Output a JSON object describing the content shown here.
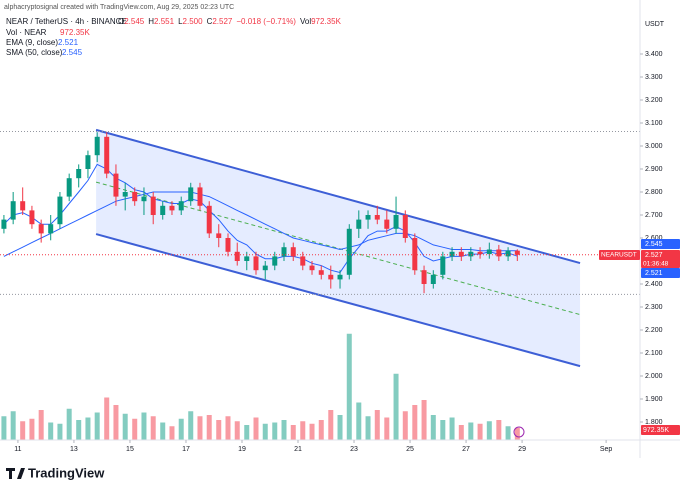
{
  "chart_data": {
    "type": "candlestick",
    "watermark": "alphacryptosignal created with TradingView.com, Aug 29, 2025 02:23 UTC",
    "symbol": "NEAR / TetherUS · 4h · BINANCE",
    "ohlc_legend": {
      "o_label": "O",
      "o": "2.545",
      "h_label": "H",
      "h": "2.551",
      "l_label": "L",
      "l": "2.500",
      "c_label": "C",
      "c": "2.527",
      "change": "−0.018 (−0.71%)",
      "vol_label": "Vol"
    },
    "vol_name": "Vol · NEAR",
    "volume_label": "972.35K",
    "ema_name": "EMA (9, close)",
    "sma_name": "SMA (50, close)",
    "currency": "USDT",
    "ticker_badge": "NEARUSDT",
    "countdown": "01:36:48",
    "brand": "TradingView",
    "up_color": "#089981",
    "down_color": "#f23645",
    "ema_color": "#2962ff",
    "sma_color": "#2962ff",
    "channel_color": "#3d5fd6",
    "xlim": [
      10.36,
      33.21
    ],
    "ylim": [
      1.72,
      3.6
    ],
    "xticks": [
      11,
      13,
      15,
      17,
      19,
      21,
      23,
      25,
      27,
      29,
      {
        "value": 32,
        "label": "Sep"
      }
    ],
    "yticks": [
      {
        "value": 1.8,
        "label": "1.800"
      },
      {
        "value": 1.9,
        "label": "1.900"
      },
      {
        "value": 2.0,
        "label": "2.000"
      },
      {
        "value": 2.1,
        "label": "2.100"
      },
      {
        "value": 2.2,
        "label": "2.200"
      },
      {
        "value": 2.3,
        "label": "2.300"
      },
      {
        "value": 2.4,
        "label": "2.400"
      },
      {
        "value": 2.6,
        "label": "2.600"
      },
      {
        "value": 2.7,
        "label": "2.700"
      },
      {
        "value": 2.8,
        "label": "2.800"
      },
      {
        "value": 2.9,
        "label": "2.900"
      },
      {
        "value": 3.0,
        "label": "3.000"
      },
      {
        "value": 3.1,
        "label": "3.100"
      },
      {
        "value": 3.2,
        "label": "3.200"
      },
      {
        "value": 3.3,
        "label": "3.300"
      },
      {
        "value": 3.4,
        "label": "3.400"
      }
    ],
    "channel": {
      "x": [
        13.79,
        31.07
      ],
      "upper": [
        3.07,
        2.491
      ],
      "lower": [
        2.617,
        2.043
      ],
      "middle": [
        2.843,
        2.267
      ]
    },
    "levels": [
      3.063,
      2.355
    ],
    "candles": [
      {
        "t": 10.5,
        "o": 2.64,
        "h": 2.7,
        "l": 2.62,
        "c": 2.68,
        "v": 1900
      },
      {
        "t": 10.83,
        "o": 2.68,
        "h": 2.8,
        "l": 2.66,
        "c": 2.76,
        "v": 2300
      },
      {
        "t": 11.17,
        "o": 2.76,
        "h": 2.82,
        "l": 2.7,
        "c": 2.72,
        "v": 1500
      },
      {
        "t": 11.5,
        "o": 2.72,
        "h": 2.74,
        "l": 2.64,
        "c": 2.66,
        "v": 1700
      },
      {
        "t": 11.83,
        "o": 2.66,
        "h": 2.68,
        "l": 2.58,
        "c": 2.62,
        "v": 2400
      },
      {
        "t": 12.17,
        "o": 2.62,
        "h": 2.7,
        "l": 2.59,
        "c": 2.66,
        "v": 1400
      },
      {
        "t": 12.5,
        "o": 2.66,
        "h": 2.8,
        "l": 2.64,
        "c": 2.78,
        "v": 1300
      },
      {
        "t": 12.83,
        "o": 2.78,
        "h": 2.88,
        "l": 2.76,
        "c": 2.86,
        "v": 2500
      },
      {
        "t": 13.17,
        "o": 2.86,
        "h": 2.92,
        "l": 2.82,
        "c": 2.9,
        "v": 1600
      },
      {
        "t": 13.5,
        "o": 2.9,
        "h": 2.98,
        "l": 2.86,
        "c": 2.96,
        "v": 1800
      },
      {
        "t": 13.83,
        "o": 2.96,
        "h": 3.06,
        "l": 2.93,
        "c": 3.04,
        "v": 2200
      },
      {
        "t": 14.17,
        "o": 3.04,
        "h": 3.06,
        "l": 2.86,
        "c": 2.88,
        "v": 3400
      },
      {
        "t": 14.5,
        "o": 2.88,
        "h": 2.92,
        "l": 2.74,
        "c": 2.78,
        "v": 2800
      },
      {
        "t": 14.83,
        "o": 2.78,
        "h": 2.84,
        "l": 2.72,
        "c": 2.8,
        "v": 2100
      },
      {
        "t": 15.17,
        "o": 2.8,
        "h": 2.82,
        "l": 2.74,
        "c": 2.76,
        "v": 1700
      },
      {
        "t": 15.5,
        "o": 2.76,
        "h": 2.82,
        "l": 2.7,
        "c": 2.78,
        "v": 2200
      },
      {
        "t": 15.83,
        "o": 2.78,
        "h": 2.8,
        "l": 2.66,
        "c": 2.7,
        "v": 1900
      },
      {
        "t": 16.17,
        "o": 2.7,
        "h": 2.76,
        "l": 2.68,
        "c": 2.74,
        "v": 1400
      },
      {
        "t": 16.5,
        "o": 2.74,
        "h": 2.76,
        "l": 2.7,
        "c": 2.72,
        "v": 1100
      },
      {
        "t": 16.83,
        "o": 2.72,
        "h": 2.78,
        "l": 2.7,
        "c": 2.76,
        "v": 1700
      },
      {
        "t": 17.17,
        "o": 2.76,
        "h": 2.84,
        "l": 2.74,
        "c": 2.82,
        "v": 2300
      },
      {
        "t": 17.5,
        "o": 2.82,
        "h": 2.84,
        "l": 2.72,
        "c": 2.74,
        "v": 1900
      },
      {
        "t": 17.83,
        "o": 2.74,
        "h": 2.76,
        "l": 2.6,
        "c": 2.62,
        "v": 2000
      },
      {
        "t": 18.17,
        "o": 2.62,
        "h": 2.66,
        "l": 2.56,
        "c": 2.6,
        "v": 1600
      },
      {
        "t": 18.5,
        "o": 2.6,
        "h": 2.62,
        "l": 2.52,
        "c": 2.54,
        "v": 1900
      },
      {
        "t": 18.83,
        "o": 2.54,
        "h": 2.58,
        "l": 2.48,
        "c": 2.5,
        "v": 1500
      },
      {
        "t": 19.17,
        "o": 2.5,
        "h": 2.54,
        "l": 2.46,
        "c": 2.52,
        "v": 1200
      },
      {
        "t": 19.5,
        "o": 2.52,
        "h": 2.54,
        "l": 2.44,
        "c": 2.46,
        "v": 1800
      },
      {
        "t": 19.83,
        "o": 2.46,
        "h": 2.5,
        "l": 2.42,
        "c": 2.48,
        "v": 1300
      },
      {
        "t": 20.17,
        "o": 2.48,
        "h": 2.54,
        "l": 2.46,
        "c": 2.52,
        "v": 1400
      },
      {
        "t": 20.5,
        "o": 2.52,
        "h": 2.58,
        "l": 2.5,
        "c": 2.56,
        "v": 1600
      },
      {
        "t": 20.83,
        "o": 2.56,
        "h": 2.58,
        "l": 2.5,
        "c": 2.52,
        "v": 1200
      },
      {
        "t": 21.17,
        "o": 2.52,
        "h": 2.54,
        "l": 2.46,
        "c": 2.48,
        "v": 1500
      },
      {
        "t": 21.5,
        "o": 2.48,
        "h": 2.5,
        "l": 2.44,
        "c": 2.46,
        "v": 1300
      },
      {
        "t": 21.83,
        "o": 2.46,
        "h": 2.48,
        "l": 2.42,
        "c": 2.44,
        "v": 1600
      },
      {
        "t": 22.17,
        "o": 2.44,
        "h": 2.48,
        "l": 2.38,
        "c": 2.42,
        "v": 2400
      },
      {
        "t": 22.5,
        "o": 2.42,
        "h": 2.46,
        "l": 2.38,
        "c": 2.44,
        "v": 2000
      },
      {
        "t": 22.83,
        "o": 2.44,
        "h": 2.66,
        "l": 2.42,
        "c": 2.64,
        "v": 8500
      },
      {
        "t": 23.17,
        "o": 2.64,
        "h": 2.72,
        "l": 2.6,
        "c": 2.68,
        "v": 3000
      },
      {
        "t": 23.5,
        "o": 2.68,
        "h": 2.72,
        "l": 2.64,
        "c": 2.7,
        "v": 1900
      },
      {
        "t": 23.83,
        "o": 2.7,
        "h": 2.74,
        "l": 2.66,
        "c": 2.68,
        "v": 2400
      },
      {
        "t": 24.17,
        "o": 2.68,
        "h": 2.72,
        "l": 2.62,
        "c": 2.64,
        "v": 1800
      },
      {
        "t": 24.5,
        "o": 2.64,
        "h": 2.78,
        "l": 2.62,
        "c": 2.7,
        "v": 5300
      },
      {
        "t": 24.83,
        "o": 2.7,
        "h": 2.72,
        "l": 2.58,
        "c": 2.6,
        "v": 2300
      },
      {
        "t": 25.17,
        "o": 2.6,
        "h": 2.62,
        "l": 2.44,
        "c": 2.46,
        "v": 2800
      },
      {
        "t": 25.5,
        "o": 2.46,
        "h": 2.48,
        "l": 2.36,
        "c": 2.4,
        "v": 3200
      },
      {
        "t": 25.83,
        "o": 2.4,
        "h": 2.46,
        "l": 2.38,
        "c": 2.44,
        "v": 2000
      },
      {
        "t": 26.17,
        "o": 2.44,
        "h": 2.54,
        "l": 2.42,
        "c": 2.52,
        "v": 1600
      },
      {
        "t": 26.5,
        "o": 2.52,
        "h": 2.56,
        "l": 2.5,
        "c": 2.54,
        "v": 1800
      },
      {
        "t": 26.83,
        "o": 2.54,
        "h": 2.56,
        "l": 2.5,
        "c": 2.52,
        "v": 1200
      },
      {
        "t": 27.17,
        "o": 2.52,
        "h": 2.56,
        "l": 2.5,
        "c": 2.54,
        "v": 1400
      },
      {
        "t": 27.5,
        "o": 2.54,
        "h": 2.56,
        "l": 2.51,
        "c": 2.53,
        "v": 1300
      },
      {
        "t": 27.83,
        "o": 2.53,
        "h": 2.58,
        "l": 2.51,
        "c": 2.55,
        "v": 1500
      },
      {
        "t": 28.17,
        "o": 2.55,
        "h": 2.57,
        "l": 2.5,
        "c": 2.52,
        "v": 1600
      },
      {
        "t": 28.5,
        "o": 2.52,
        "h": 2.56,
        "l": 2.5,
        "c": 2.545,
        "v": 1100
      },
      {
        "t": 28.83,
        "o": 2.545,
        "h": 2.551,
        "l": 2.5,
        "c": 2.527,
        "v": 972.35
      }
    ],
    "ema": [
      2.66,
      2.7,
      2.71,
      2.69,
      2.66,
      2.66,
      2.7,
      2.75,
      2.8,
      2.85,
      2.92,
      2.9,
      2.86,
      2.84,
      2.81,
      2.8,
      2.77,
      2.76,
      2.75,
      2.75,
      2.77,
      2.76,
      2.72,
      2.68,
      2.63,
      2.59,
      2.57,
      2.53,
      2.51,
      2.51,
      2.52,
      2.52,
      2.51,
      2.49,
      2.48,
      2.46,
      2.45,
      2.51,
      2.56,
      2.61,
      2.63,
      2.63,
      2.65,
      2.63,
      2.58,
      2.52,
      2.5,
      2.51,
      2.52,
      2.52,
      2.53,
      2.53,
      2.54,
      2.53,
      2.535,
      2.521
    ],
    "sma": [
      2.52,
      2.54,
      2.56,
      2.58,
      2.6,
      2.62,
      2.64,
      2.66,
      2.68,
      2.7,
      2.72,
      2.74,
      2.76,
      2.77,
      2.78,
      2.79,
      2.8,
      2.8,
      2.8,
      2.8,
      2.8,
      2.79,
      2.78,
      2.76,
      2.74,
      2.72,
      2.7,
      2.68,
      2.66,
      2.64,
      2.62,
      2.6,
      2.59,
      2.58,
      2.57,
      2.56,
      2.55,
      2.56,
      2.57,
      2.59,
      2.6,
      2.61,
      2.62,
      2.62,
      2.61,
      2.59,
      2.57,
      2.56,
      2.55,
      2.55,
      2.55,
      2.545,
      2.545,
      2.545,
      2.545,
      2.545
    ]
  }
}
